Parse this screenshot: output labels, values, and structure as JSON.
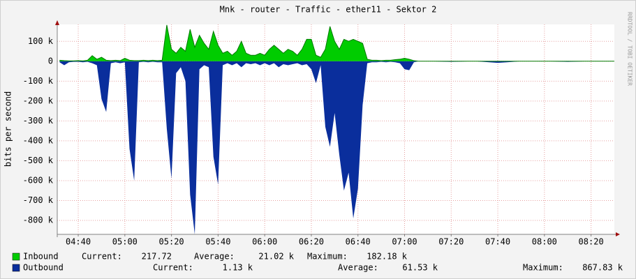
{
  "chart_data": {
    "type": "area",
    "title": "Mnk - router - Traffic - ether11 - Sektor 2",
    "ylabel": "bits per second",
    "watermark": "RRDTOOL / TOBI OETIKER",
    "x": [
      "04:32",
      "04:34",
      "04:36",
      "04:38",
      "04:40",
      "04:42",
      "04:44",
      "04:46",
      "04:48",
      "04:50",
      "04:52",
      "04:54",
      "04:56",
      "04:58",
      "05:00",
      "05:02",
      "05:04",
      "05:06",
      "05:08",
      "05:10",
      "05:12",
      "05:14",
      "05:16",
      "05:18",
      "05:20",
      "05:22",
      "05:24",
      "05:26",
      "05:28",
      "05:30",
      "05:32",
      "05:34",
      "05:36",
      "05:38",
      "05:40",
      "05:42",
      "05:44",
      "05:46",
      "05:48",
      "05:50",
      "05:52",
      "05:54",
      "05:56",
      "05:58",
      "06:00",
      "06:02",
      "06:04",
      "06:06",
      "06:08",
      "06:10",
      "06:12",
      "06:14",
      "06:16",
      "06:18",
      "06:20",
      "06:22",
      "06:24",
      "06:26",
      "06:28",
      "06:30",
      "06:32",
      "06:34",
      "06:36",
      "06:38",
      "06:40",
      "06:42",
      "06:44",
      "06:46",
      "06:48",
      "06:50",
      "06:52",
      "06:54",
      "06:56",
      "06:58",
      "07:00",
      "07:02",
      "07:04",
      "07:06",
      "07:10",
      "07:20",
      "07:30",
      "07:40",
      "07:44",
      "07:50",
      "08:00",
      "08:10",
      "08:20",
      "08:30"
    ],
    "series": [
      {
        "name": "Inbound",
        "color": "#00cc00",
        "line_color": "#007a00",
        "values": [
          5000,
          3000,
          2000,
          2000,
          3000,
          2000,
          5000,
          28000,
          10000,
          20000,
          5000,
          3000,
          5000,
          3000,
          15000,
          5000,
          3000,
          3000,
          5000,
          3000,
          5000,
          3000,
          5000,
          182000,
          60000,
          40000,
          70000,
          50000,
          160000,
          70000,
          130000,
          90000,
          60000,
          150000,
          80000,
          40000,
          50000,
          30000,
          50000,
          100000,
          40000,
          30000,
          30000,
          40000,
          30000,
          60000,
          80000,
          60000,
          40000,
          60000,
          50000,
          30000,
          60000,
          110000,
          110000,
          30000,
          20000,
          60000,
          175000,
          100000,
          60000,
          110000,
          100000,
          110000,
          100000,
          90000,
          10000,
          5000,
          5000,
          3000,
          5000,
          5000,
          8000,
          10000,
          15000,
          10000,
          3000,
          0,
          0,
          0,
          0,
          0,
          0,
          0,
          0,
          0,
          0,
          0
        ],
        "stats": [
          {
            "label": "Current:",
            "value": 217.72
          },
          {
            "label": "Average:",
            "value": "21.02 k"
          },
          {
            "label": "Maximum:",
            "value": "182.18 k"
          }
        ]
      },
      {
        "name": "Outbound",
        "color": "#0a2e9c",
        "values": [
          -5000,
          -20000,
          -5000,
          -3000,
          -3000,
          -5000,
          -3000,
          -10000,
          -20000,
          -190000,
          -255000,
          -10000,
          -5000,
          -10000,
          -5000,
          -440000,
          -600000,
          -5000,
          -3000,
          -5000,
          -3000,
          -5000,
          -5000,
          -340000,
          -590000,
          -60000,
          -30000,
          -100000,
          -670000,
          -870000,
          -40000,
          -20000,
          -30000,
          -480000,
          -620000,
          -20000,
          -10000,
          -20000,
          -10000,
          -30000,
          -10000,
          -15000,
          -10000,
          -20000,
          -10000,
          -20000,
          -10000,
          -30000,
          -15000,
          -20000,
          -15000,
          -10000,
          -20000,
          -15000,
          -40000,
          -110000,
          -20000,
          -330000,
          -430000,
          -260000,
          -470000,
          -650000,
          -560000,
          -790000,
          -640000,
          -220000,
          -10000,
          -5000,
          -5000,
          -3000,
          -5000,
          -3000,
          -5000,
          -10000,
          -40000,
          -45000,
          -5000,
          0,
          0,
          -3000,
          0,
          -8000,
          -5000,
          0,
          0,
          -3000,
          0,
          0
        ],
        "stats": [
          {
            "label": "Current:",
            "value": "1.13 k"
          },
          {
            "label": "Average:",
            "value": "61.53 k"
          },
          {
            "label": "Maximum:",
            "value": "867.83 k"
          }
        ]
      }
    ],
    "xlim": [
      "04:31",
      "08:30"
    ],
    "xticks": [
      "04:40",
      "05:00",
      "05:20",
      "05:40",
      "06:00",
      "06:20",
      "06:40",
      "07:00",
      "07:20",
      "07:40",
      "08:00",
      "08:20"
    ],
    "ylim": [
      -870000,
      185000
    ],
    "yticks": [
      {
        "value": 100000,
        "label": "100 k"
      },
      0,
      {
        "value": -100000,
        "label": "-100 k"
      },
      {
        "value": -200000,
        "label": "-200 k"
      },
      {
        "value": -300000,
        "label": "-300 k"
      },
      {
        "value": -400000,
        "label": "-400 k"
      },
      {
        "value": -500000,
        "label": "-500 k"
      },
      {
        "value": -600000,
        "label": "-600 k"
      },
      {
        "value": -700000,
        "label": "-700 k"
      },
      {
        "value": -800000,
        "label": "-800 k"
      }
    ],
    "grid": true
  }
}
